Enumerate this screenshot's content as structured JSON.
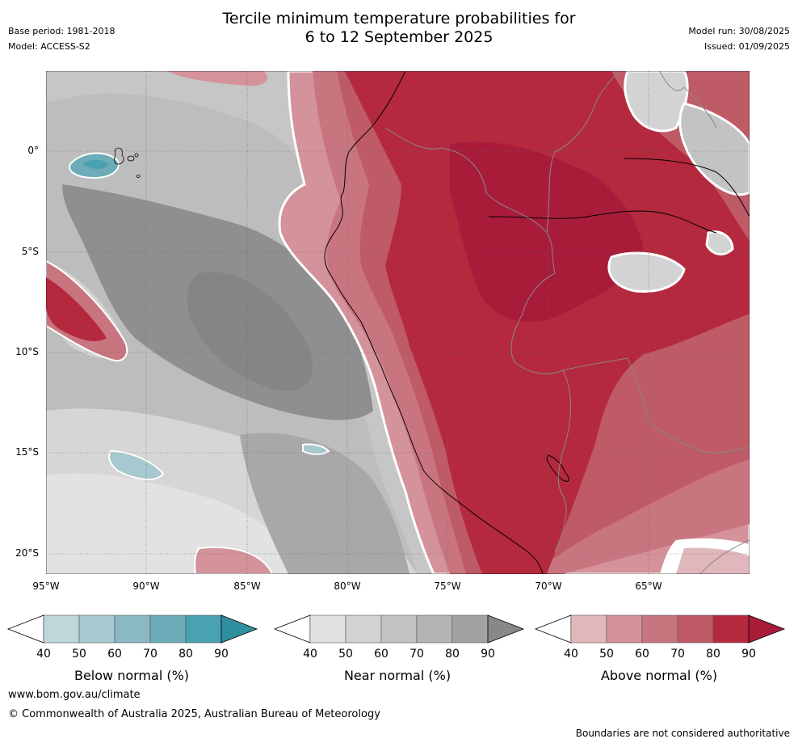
{
  "header": {
    "title_line1": "Tercile minimum temperature probabilities for",
    "title_line2": "6 to 12 September 2025",
    "base_period": "Base period: 1981-2018",
    "model": "Model: ACCESS-S2",
    "model_run": "Model run: 30/08/2025",
    "issued": "Issued: 01/09/2025"
  },
  "map": {
    "lat_labels": [
      "0°",
      "5°S",
      "10°S",
      "15°S",
      "20°S"
    ],
    "lon_labels": [
      "95°W",
      "90°W",
      "85°W",
      "80°W",
      "75°W",
      "70°W",
      "65°W"
    ]
  },
  "legends": [
    {
      "title": "Below normal (%)",
      "ticks": [
        "40",
        "50",
        "60",
        "70",
        "80",
        "90"
      ],
      "colors": [
        "#ffffff",
        "#bfd6db",
        "#a6c8cf",
        "#8bb9c3",
        "#6cacb8",
        "#4aa1b0",
        "#2f8f9f"
      ]
    },
    {
      "title": "Near normal (%)",
      "ticks": [
        "40",
        "50",
        "60",
        "70",
        "80",
        "90"
      ],
      "colors": [
        "#ffffff",
        "#e2e2e2",
        "#d3d3d3",
        "#c3c3c3",
        "#b3b3b3",
        "#a2a2a2",
        "#888888"
      ]
    },
    {
      "title": "Above normal (%)",
      "ticks": [
        "40",
        "50",
        "60",
        "70",
        "80",
        "90"
      ],
      "colors": [
        "#ffffff",
        "#e0b7bc",
        "#d4929a",
        "#c97580",
        "#bf5a67",
        "#b5293f",
        "#a81c3a"
      ]
    }
  ],
  "footer": {
    "url": "www.bom.gov.au/climate",
    "copyright": "© Commonwealth of Australia 2025, Australian Bureau of Meteorology",
    "disclaimer": "Boundaries are not considered authoritative"
  }
}
